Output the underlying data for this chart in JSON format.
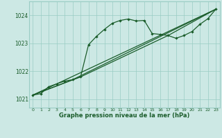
{
  "bg_color": "#cce8e4",
  "grid_color": "#99ccc4",
  "line_color": "#1a5c2a",
  "xlabel": "Graphe pression niveau de la mer (hPa)",
  "ylim": [
    1020.7,
    1024.5
  ],
  "xlim": [
    -0.5,
    23.5
  ],
  "yticks": [
    1021,
    1022,
    1023,
    1024
  ],
  "xticks": [
    0,
    1,
    2,
    3,
    4,
    5,
    6,
    7,
    8,
    9,
    10,
    11,
    12,
    13,
    14,
    15,
    16,
    17,
    18,
    19,
    20,
    21,
    22,
    23
  ],
  "line1": [
    1021.15,
    1021.2,
    1021.45,
    1021.55,
    1021.65,
    1021.7,
    1021.8,
    1022.95,
    1023.25,
    1023.5,
    1023.72,
    1023.82,
    1023.87,
    1023.8,
    1023.82,
    1023.35,
    1023.32,
    1023.28,
    1023.18,
    1023.28,
    1023.42,
    1023.68,
    1023.88,
    1024.22
  ],
  "line2_x": [
    0,
    23
  ],
  "line2_y": [
    1021.15,
    1024.22
  ],
  "line3_x": [
    0,
    5,
    23
  ],
  "line3_y": [
    1021.15,
    1021.7,
    1024.22
  ],
  "line4_x": [
    0,
    6,
    17,
    23
  ],
  "line4_y": [
    1021.15,
    1021.8,
    1023.28,
    1024.22
  ]
}
